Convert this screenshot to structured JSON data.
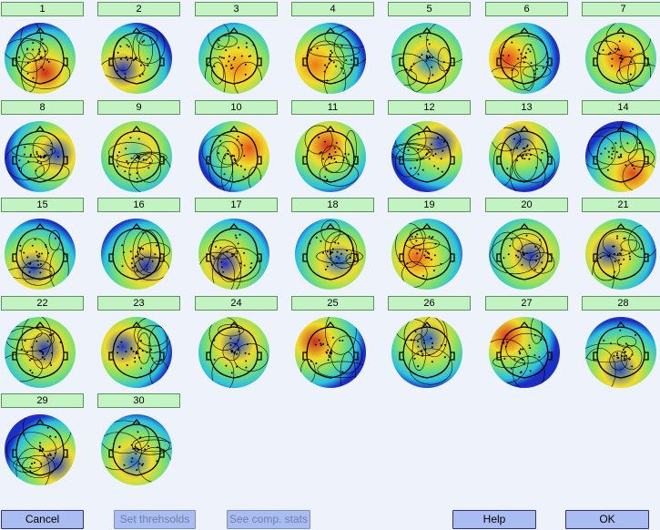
{
  "components": [
    {
      "label": "1",
      "tone": "d0",
      "accent": "#d22a1a"
    },
    {
      "label": "2",
      "tone": "d1",
      "accent": "#1d2ecb"
    },
    {
      "label": "3",
      "tone": "d2",
      "accent": "#f08a16"
    },
    {
      "label": "4",
      "tone": "d2",
      "accent": "#ec7a16"
    },
    {
      "label": "5",
      "tone": "d3",
      "accent": "#1e8fd9"
    },
    {
      "label": "6",
      "tone": "d4",
      "accent": "#e63a19"
    },
    {
      "label": "7",
      "tone": "d5",
      "accent": "#e34c16"
    },
    {
      "label": "8",
      "tone": "d6",
      "accent": "#1b3fd1"
    },
    {
      "label": "9",
      "tone": "d7",
      "accent": "#5fd0a8"
    },
    {
      "label": "10",
      "tone": "d8",
      "accent": "#e5571a"
    },
    {
      "label": "11",
      "tone": "d9",
      "accent": "#d8301b"
    },
    {
      "label": "12",
      "tone": "d10",
      "accent": "#1e39c9"
    },
    {
      "label": "13",
      "tone": "d11",
      "accent": "#1d4fcf"
    },
    {
      "label": "14",
      "tone": "d12",
      "accent": "#e04a18"
    },
    {
      "label": "15",
      "tone": "d13",
      "accent": "#1d47cc"
    },
    {
      "label": "16",
      "tone": "d14",
      "accent": "#1c34c5"
    },
    {
      "label": "17",
      "tone": "d15",
      "accent": "#1f2ccf"
    },
    {
      "label": "18",
      "tone": "d16",
      "accent": "#1d65db"
    },
    {
      "label": "19",
      "tone": "d17",
      "accent": "#ea5f1b"
    },
    {
      "label": "20",
      "tone": "d18",
      "accent": "#1d3bd3"
    },
    {
      "label": "21",
      "tone": "d19",
      "accent": "#1c3dc8"
    },
    {
      "label": "22",
      "tone": "d20",
      "accent": "#1c37c6"
    },
    {
      "label": "23",
      "tone": "d21",
      "accent": "#1b37c8"
    },
    {
      "label": "24",
      "tone": "d22",
      "accent": "#1f44d1"
    },
    {
      "label": "25",
      "tone": "d23",
      "accent": "#c92d1b"
    },
    {
      "label": "26",
      "tone": "d24",
      "accent": "#1c5fd3"
    },
    {
      "label": "27",
      "tone": "d25",
      "accent": "#d8351a"
    },
    {
      "label": "28",
      "tone": "d26",
      "accent": "#1c47cc"
    },
    {
      "label": "29",
      "tone": "d27",
      "accent": "#1d3dcf"
    },
    {
      "label": "30",
      "tone": "d28",
      "accent": "#1d73d8"
    }
  ],
  "buttons": {
    "cancel": "Cancel",
    "set_thresholds": "Set threhsolds",
    "see_comp_stats": "See comp. stats",
    "help": "Help",
    "ok": "OK"
  }
}
